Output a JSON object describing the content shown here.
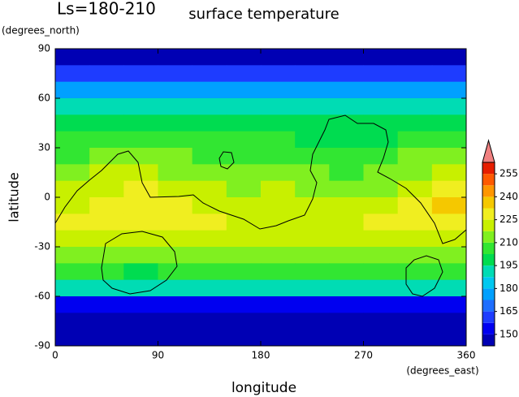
{
  "chart_data": {
    "type": "heatmap",
    "title": "surface temperature",
    "annotation": "Ls=180-210",
    "xlabel": "longitude",
    "xlabel_units": "(degrees_east)",
    "ylabel": "latitude",
    "ylabel_units": "(degrees_north)",
    "xlim": [
      0,
      360
    ],
    "ylim": [
      -90,
      90
    ],
    "xticks": [
      0,
      90,
      180,
      270,
      360
    ],
    "yticks": [
      -90,
      -60,
      -30,
      0,
      30,
      60,
      90
    ],
    "cell_width": 30,
    "cell_height": 10,
    "x": [
      15,
      45,
      75,
      105,
      135,
      165,
      195,
      225,
      255,
      285,
      315,
      345
    ],
    "y": [
      85,
      75,
      65,
      55,
      45,
      35,
      25,
      15,
      5,
      -5,
      -15,
      -25,
      -35,
      -45,
      -55,
      -65,
      -75,
      -85
    ],
    "values": [
      [
        148,
        148,
        148,
        148,
        148,
        148,
        148,
        148,
        148,
        148,
        148,
        148
      ],
      [
        158,
        158,
        158,
        158,
        158,
        158,
        158,
        158,
        158,
        158,
        158,
        158
      ],
      [
        176,
        176,
        178,
        178,
        178,
        178,
        178,
        176,
        176,
        176,
        176,
        176
      ],
      [
        190,
        192,
        192,
        192,
        192,
        190,
        190,
        190,
        190,
        190,
        190,
        190
      ],
      [
        198,
        200,
        200,
        200,
        198,
        198,
        198,
        196,
        196,
        196,
        198,
        198
      ],
      [
        204,
        206,
        206,
        205,
        204,
        203,
        203,
        202,
        200,
        200,
        204,
        204
      ],
      [
        208,
        212,
        212,
        210,
        206,
        206,
        206,
        205,
        204,
        204,
        210,
        210
      ],
      [
        214,
        218,
        218,
        215,
        212,
        210,
        212,
        210,
        208,
        210,
        216,
        218
      ],
      [
        218,
        222,
        225,
        222,
        218,
        216,
        218,
        216,
        214,
        216,
        222,
        228
      ],
      [
        224,
        228,
        232,
        226,
        222,
        220,
        222,
        222,
        220,
        224,
        232,
        234
      ],
      [
        226,
        228,
        230,
        228,
        226,
        224,
        224,
        224,
        224,
        226,
        230,
        230
      ],
      [
        224,
        224,
        224,
        224,
        224,
        222,
        222,
        222,
        222,
        224,
        224,
        224
      ],
      [
        216,
        214,
        212,
        214,
        216,
        216,
        216,
        216,
        216,
        216,
        214,
        216
      ],
      [
        206,
        204,
        202,
        204,
        206,
        206,
        206,
        206,
        206,
        206,
        204,
        206
      ],
      [
        192,
        190,
        188,
        190,
        192,
        192,
        192,
        192,
        192,
        190,
        190,
        192
      ],
      [
        150,
        150,
        150,
        150,
        150,
        150,
        150,
        150,
        150,
        150,
        150,
        152
      ],
      [
        145,
        145,
        145,
        145,
        145,
        145,
        145,
        145,
        145,
        145,
        145,
        145
      ],
      [
        145,
        145,
        145,
        145,
        145,
        145,
        145,
        145,
        145,
        145,
        145,
        145
      ]
    ],
    "colorbar": {
      "levels": [
        142.5,
        150,
        157.5,
        165,
        172.5,
        180,
        187.5,
        195,
        202.5,
        210,
        217.5,
        225,
        232.5,
        240,
        247.5,
        255,
        262.5
      ],
      "colors": [
        "#0000b4",
        "#0000f0",
        "#1e3cff",
        "#1e6eff",
        "#00a0ff",
        "#00c8f0",
        "#00dcb4",
        "#00dc50",
        "#32e632",
        "#80f020",
        "#c8f000",
        "#f0ee20",
        "#f5c800",
        "#ff9600",
        "#ff5a00",
        "#e61e00"
      ],
      "extend_color": "#f08080",
      "ticks": [
        150,
        165,
        180,
        195,
        210,
        225,
        240,
        255
      ]
    }
  }
}
